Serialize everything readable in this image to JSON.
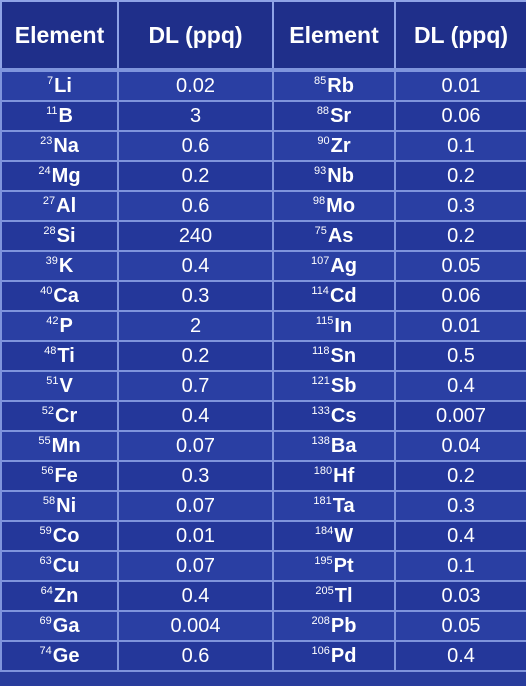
{
  "headers": [
    "Element",
    "DL (ppq)",
    "Element",
    "DL (ppq)"
  ],
  "rows": [
    {
      "m1": "7",
      "s1": "Li",
      "v1": "0.02",
      "m2": "85",
      "s2": "Rb",
      "v2": "0.01"
    },
    {
      "m1": "11",
      "s1": "B",
      "v1": "3",
      "m2": "88",
      "s2": "Sr",
      "v2": "0.06"
    },
    {
      "m1": "23",
      "s1": "Na",
      "v1": "0.6",
      "m2": "90",
      "s2": "Zr",
      "v2": "0.1"
    },
    {
      "m1": "24",
      "s1": "Mg",
      "v1": "0.2",
      "m2": "93",
      "s2": "Nb",
      "v2": "0.2"
    },
    {
      "m1": "27",
      "s1": "Al",
      "v1": "0.6",
      "m2": "98",
      "s2": "Mo",
      "v2": "0.3"
    },
    {
      "m1": "28",
      "s1": "Si",
      "v1": "240",
      "m2": "75",
      "s2": "As",
      "v2": "0.2"
    },
    {
      "m1": "39",
      "s1": "K",
      "v1": "0.4",
      "m2": "107",
      "s2": "Ag",
      "v2": "0.05"
    },
    {
      "m1": "40",
      "s1": "Ca",
      "v1": "0.3",
      "m2": "114",
      "s2": "Cd",
      "v2": "0.06"
    },
    {
      "m1": "42",
      "s1": "P",
      "v1": "2",
      "m2": "115",
      "s2": "In",
      "v2": "0.01"
    },
    {
      "m1": "48",
      "s1": "Ti",
      "v1": "0.2",
      "m2": "118",
      "s2": "Sn",
      "v2": "0.5"
    },
    {
      "m1": "51",
      "s1": "V",
      "v1": "0.7",
      "m2": "121",
      "s2": "Sb",
      "v2": "0.4"
    },
    {
      "m1": "52",
      "s1": "Cr",
      "v1": "0.4",
      "m2": "133",
      "s2": "Cs",
      "v2": "0.007"
    },
    {
      "m1": "55",
      "s1": "Mn",
      "v1": "0.07",
      "m2": "138",
      "s2": "Ba",
      "v2": "0.04"
    },
    {
      "m1": "56",
      "s1": "Fe",
      "v1": "0.3",
      "m2": "180",
      "s2": "Hf",
      "v2": "0.2"
    },
    {
      "m1": "58",
      "s1": "Ni",
      "v1": "0.07",
      "m2": "181",
      "s2": "Ta",
      "v2": "0.3"
    },
    {
      "m1": "59",
      "s1": "Co",
      "v1": "0.01",
      "m2": "184",
      "s2": "W",
      "v2": "0.4"
    },
    {
      "m1": "63",
      "s1": "Cu",
      "v1": "0.07",
      "m2": "195",
      "s2": "Pt",
      "v2": "0.1"
    },
    {
      "m1": "64",
      "s1": "Zn",
      "v1": "0.4",
      "m2": "205",
      "s2": "Tl",
      "v2": "0.03"
    },
    {
      "m1": "69",
      "s1": "Ga",
      "v1": "0.004",
      "m2": "208",
      "s2": "Pb",
      "v2": "0.05"
    },
    {
      "m1": "74",
      "s1": "Ge",
      "v1": "0.6",
      "m2": "106",
      "s2": "Pd",
      "v2": "0.4"
    }
  ],
  "colors": {
    "header_bg": "#1f2f8a",
    "row_bg": "#2a3fa3",
    "grid_line": "#7f94dc",
    "text": "#ffffff"
  }
}
